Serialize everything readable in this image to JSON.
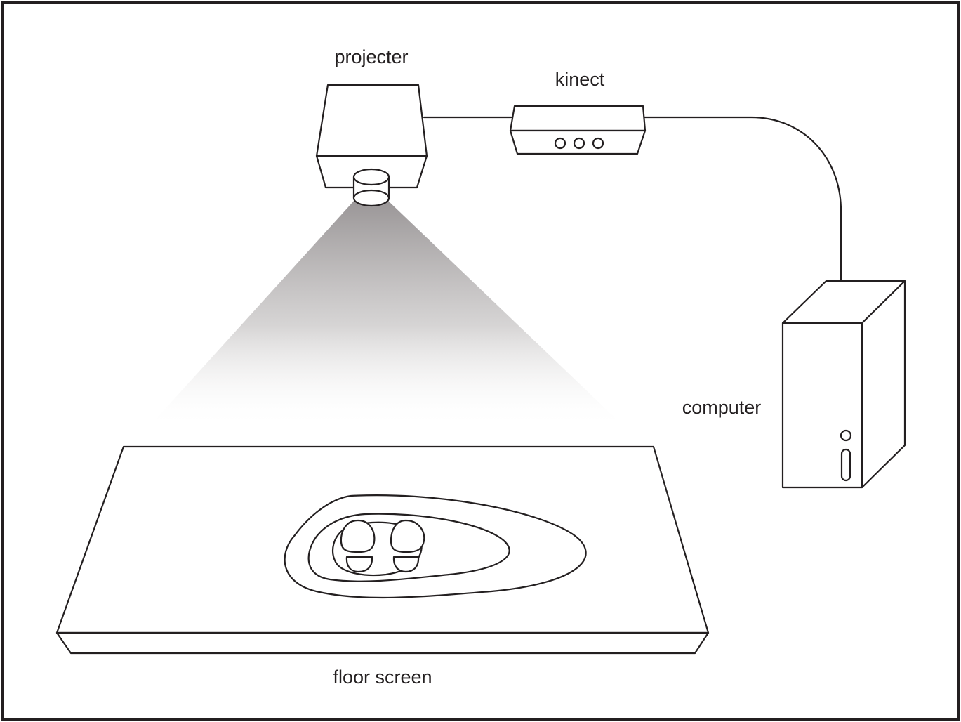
{
  "labels": {
    "projector": "projecter",
    "kinect": "kinect",
    "computer": "computer",
    "floor_screen": "floor screen"
  },
  "colors": {
    "line": "#231f20",
    "background": "#ffffff",
    "beam_top": "#9a9697"
  }
}
